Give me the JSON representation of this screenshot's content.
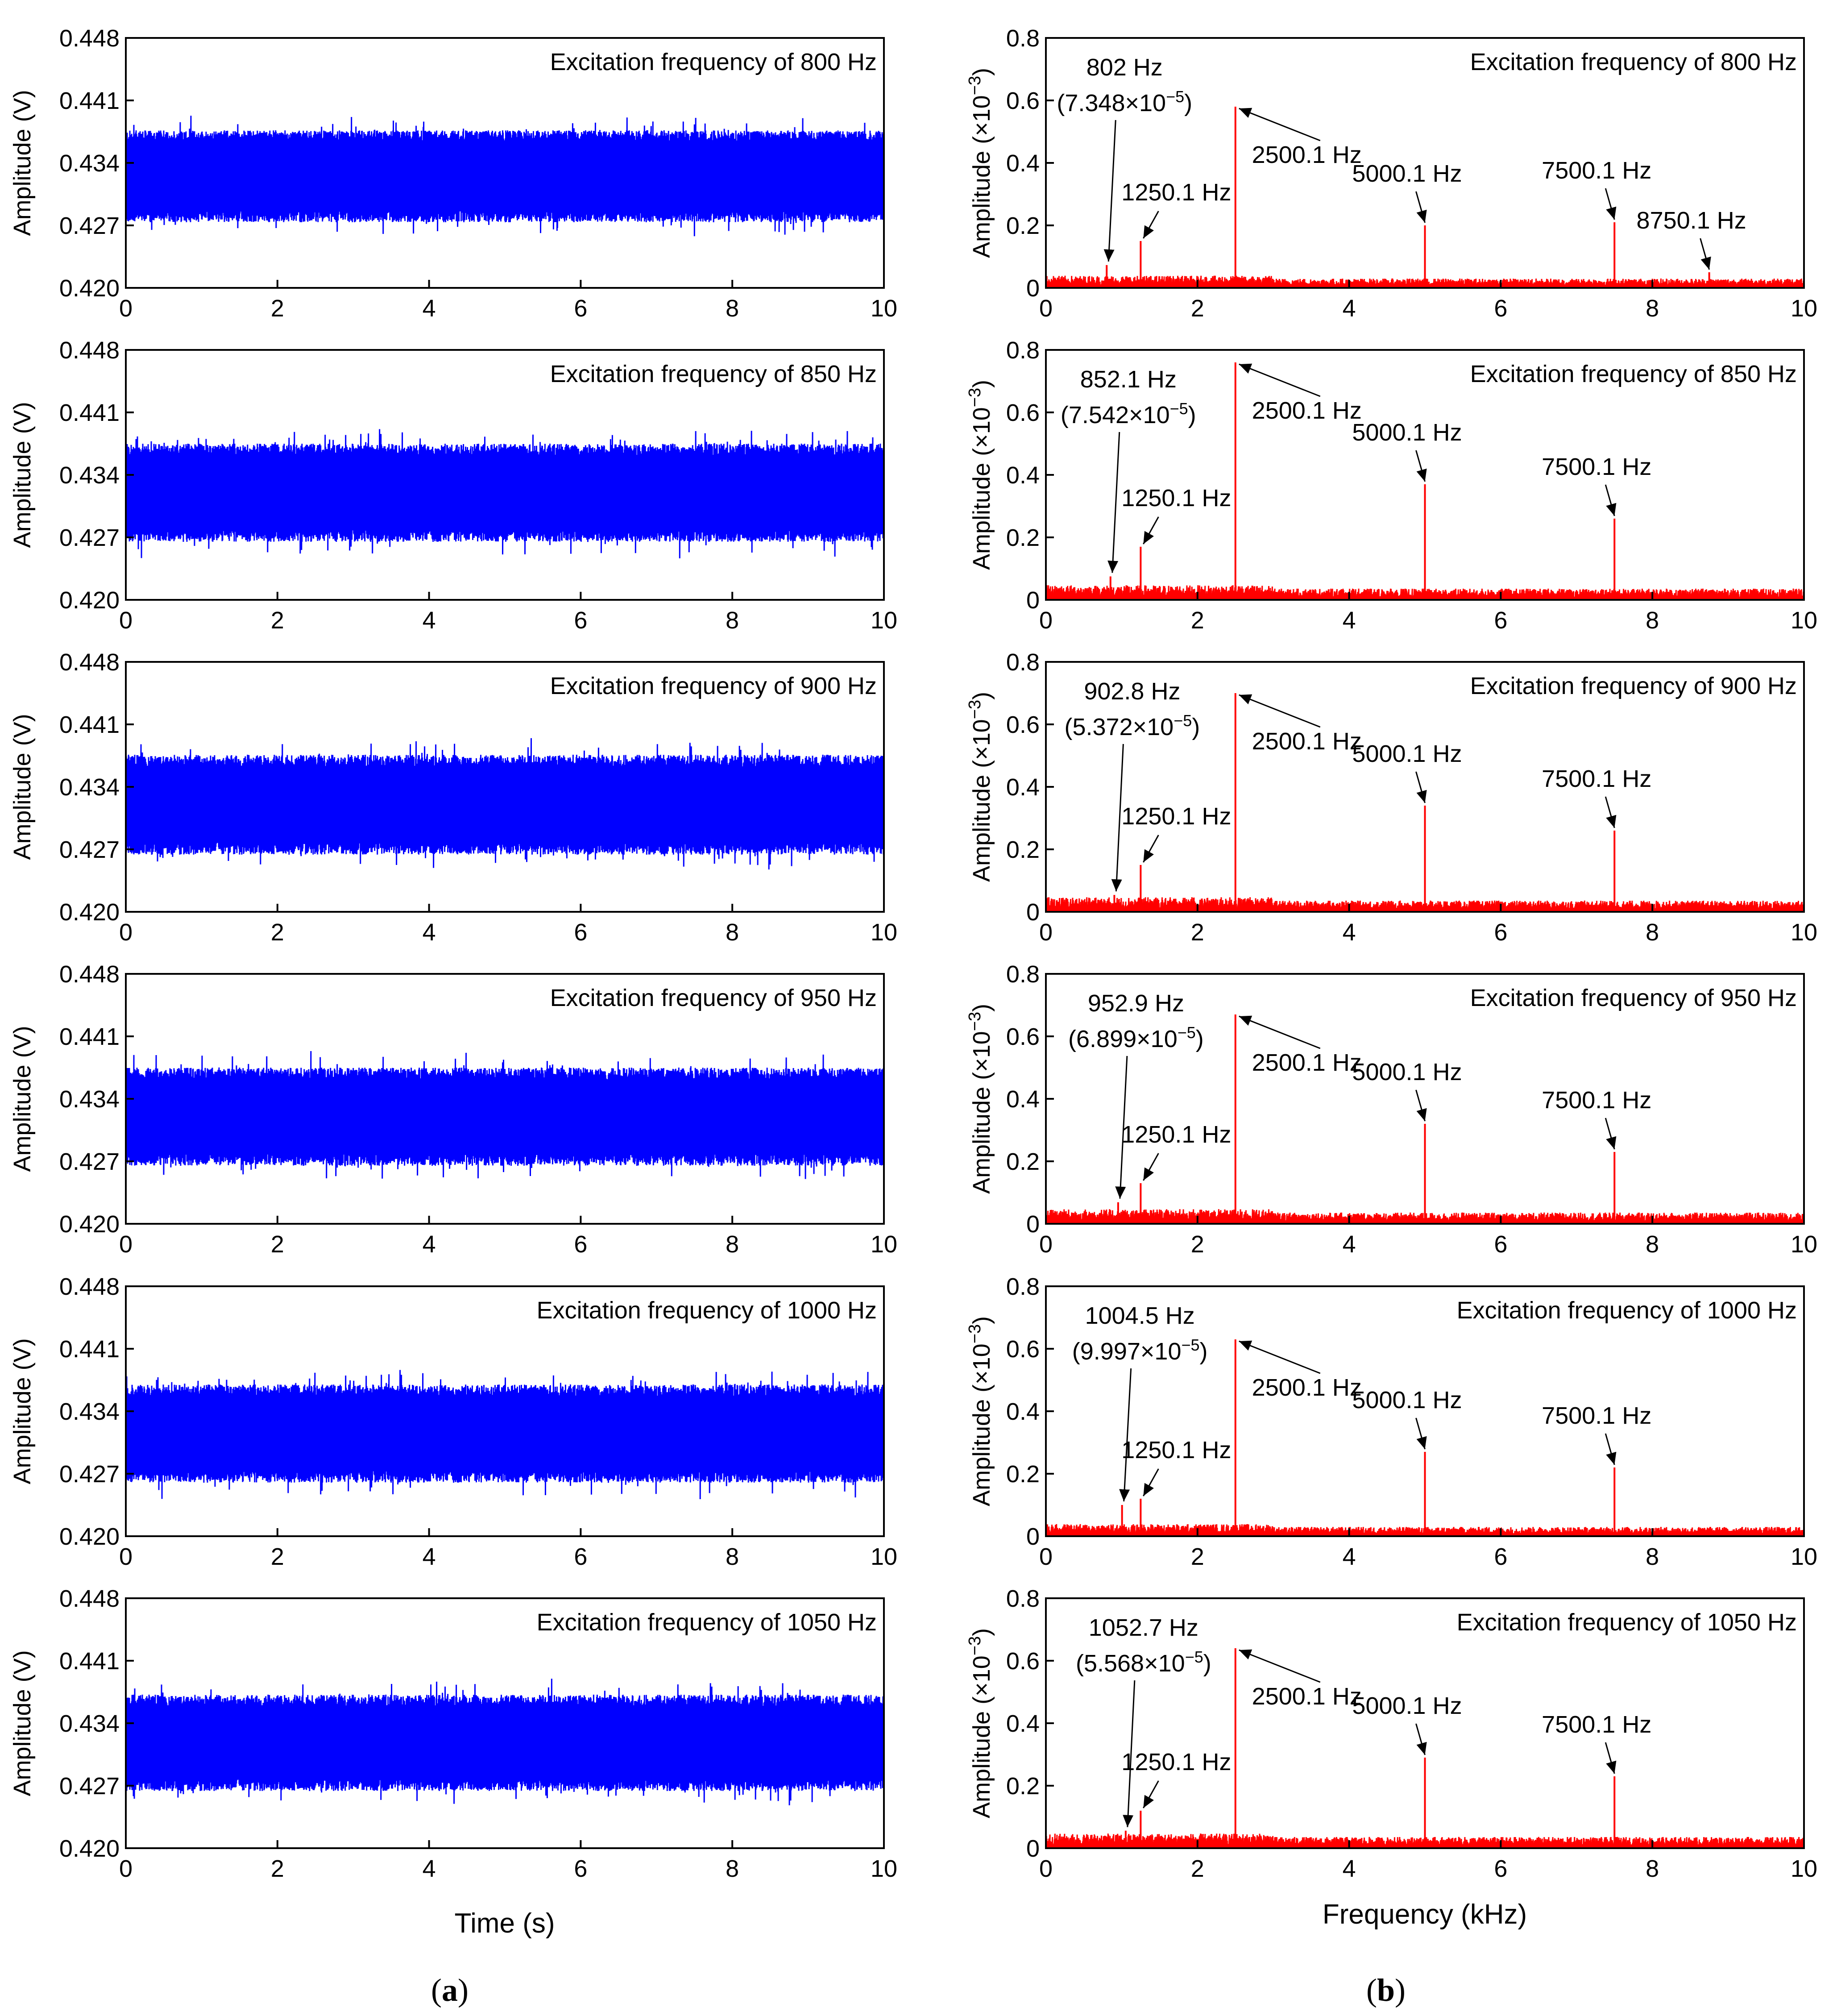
{
  "captions": {
    "a": "a",
    "b": "b"
  },
  "colors": {
    "time_series": "#0000ff",
    "spectrum": "#ff0000",
    "axes": "#000000"
  },
  "left_axis": {
    "ylabel": "Amplitude (V)",
    "xlabel": "Time (s)"
  },
  "right_axis": {
    "ylabel_base": "Amplitude (×10",
    "ylabel_exp": "−3",
    "ylabel_tail": ")",
    "xlabel": "Frequency (kHz)"
  },
  "chart_data": [
    {
      "panel": "a-1",
      "type": "line",
      "title": "Excitation frequency of 800 Hz",
      "xlim": [
        0,
        10
      ],
      "ylim": [
        0.42,
        0.448
      ],
      "xticks": [
        "0",
        "2",
        "4",
        "6",
        "8",
        "10"
      ],
      "yticks": [
        "0.420",
        "0.427",
        "0.434",
        "0.441",
        "0.448"
      ],
      "series": [
        {
          "mean": 0.4325,
          "band_low": 0.4275,
          "band_high": 0.4378
        }
      ]
    },
    {
      "panel": "a-2",
      "type": "line",
      "title": "Excitation frequency of 850 Hz",
      "xlim": [
        0,
        10
      ],
      "ylim": [
        0.42,
        0.448
      ],
      "xticks": [
        "0",
        "2",
        "4",
        "6",
        "8",
        "10"
      ],
      "yticks": [
        "0.420",
        "0.427",
        "0.434",
        "0.441",
        "0.448"
      ],
      "series": [
        {
          "mean": 0.432,
          "band_low": 0.4265,
          "band_high": 0.4375
        }
      ]
    },
    {
      "panel": "a-3",
      "type": "line",
      "title": "Excitation frequency of 900 Hz",
      "xlim": [
        0,
        10
      ],
      "ylim": [
        0.42,
        0.448
      ],
      "xticks": [
        "0",
        "2",
        "4",
        "6",
        "8",
        "10"
      ],
      "yticks": [
        "0.420",
        "0.427",
        "0.434",
        "0.441",
        "0.448"
      ],
      "series": [
        {
          "mean": 0.432,
          "band_low": 0.4265,
          "band_high": 0.4377
        }
      ]
    },
    {
      "panel": "a-4",
      "type": "line",
      "title": "Excitation frequency of 950 Hz",
      "xlim": [
        0,
        10
      ],
      "ylim": [
        0.42,
        0.448
      ],
      "xticks": [
        "0",
        "2",
        "4",
        "6",
        "8",
        "10"
      ],
      "yticks": [
        "0.420",
        "0.427",
        "0.434",
        "0.441",
        "0.448"
      ],
      "series": [
        {
          "mean": 0.432,
          "band_low": 0.4265,
          "band_high": 0.4375
        }
      ]
    },
    {
      "panel": "a-5",
      "type": "line",
      "title": "Excitation frequency of 1000 Hz",
      "xlim": [
        0,
        10
      ],
      "ylim": [
        0.42,
        0.448
      ],
      "xticks": [
        "0",
        "2",
        "4",
        "6",
        "8",
        "10"
      ],
      "yticks": [
        "0.420",
        "0.427",
        "0.434",
        "0.441",
        "0.448"
      ],
      "series": [
        {
          "mean": 0.4315,
          "band_low": 0.426,
          "band_high": 0.437
        }
      ]
    },
    {
      "panel": "a-6",
      "type": "line",
      "title": "Excitation frequency of 1050 Hz",
      "xlim": [
        0,
        10
      ],
      "ylim": [
        0.42,
        0.448
      ],
      "xticks": [
        "0",
        "2",
        "4",
        "6",
        "8",
        "10"
      ],
      "yticks": [
        "0.420",
        "0.427",
        "0.434",
        "0.441",
        "0.448"
      ],
      "series": [
        {
          "mean": 0.4318,
          "band_low": 0.4262,
          "band_high": 0.437
        }
      ]
    },
    {
      "panel": "b-1",
      "type": "line",
      "title": "Excitation frequency of 800 Hz",
      "xlim": [
        0,
        10
      ],
      "ylim": [
        0,
        0.8
      ],
      "xticks": [
        "0",
        "2",
        "4",
        "6",
        "8",
        "10"
      ],
      "yticks": [
        "0",
        "0.2",
        "0.4",
        "0.6",
        "0.8"
      ],
      "noise_floor": 0.025,
      "peaks": [
        {
          "x": 0.802,
          "y": 0.073,
          "label": "802 Hz",
          "sublabel": "(7.348×10",
          "subexp": "−5",
          "subtail": ")"
        },
        {
          "x": 1.2501,
          "y": 0.15,
          "label": "1250.1 Hz"
        },
        {
          "x": 2.5001,
          "y": 0.58,
          "label": "2500.1 Hz"
        },
        {
          "x": 5.0001,
          "y": 0.2,
          "label": "5000.1 Hz"
        },
        {
          "x": 7.5001,
          "y": 0.21,
          "label": "7500.1 Hz"
        },
        {
          "x": 8.7501,
          "y": 0.05,
          "label": "8750.1 Hz"
        }
      ]
    },
    {
      "panel": "b-2",
      "type": "line",
      "title": "Excitation frequency of 850 Hz",
      "xlim": [
        0,
        10
      ],
      "ylim": [
        0,
        0.8
      ],
      "xticks": [
        "0",
        "2",
        "4",
        "6",
        "8",
        "10"
      ],
      "yticks": [
        "0",
        "0.2",
        "0.4",
        "0.6",
        "0.8"
      ],
      "noise_floor": 0.03,
      "peaks": [
        {
          "x": 0.8521,
          "y": 0.075,
          "label": "852.1 Hz",
          "sublabel": "(7.542×10",
          "subexp": "−5",
          "subtail": ")"
        },
        {
          "x": 1.2501,
          "y": 0.17,
          "label": "1250.1 Hz"
        },
        {
          "x": 2.5001,
          "y": 0.76,
          "label": "2500.1 Hz"
        },
        {
          "x": 5.0001,
          "y": 0.37,
          "label": "5000.1 Hz"
        },
        {
          "x": 7.5001,
          "y": 0.26,
          "label": "7500.1 Hz"
        }
      ]
    },
    {
      "panel": "b-3",
      "type": "line",
      "title": "Excitation frequency of 900 Hz",
      "xlim": [
        0,
        10
      ],
      "ylim": [
        0,
        0.8
      ],
      "xticks": [
        "0",
        "2",
        "4",
        "6",
        "8",
        "10"
      ],
      "yticks": [
        "0",
        "0.2",
        "0.4",
        "0.6",
        "0.8"
      ],
      "noise_floor": 0.03,
      "peaks": [
        {
          "x": 0.9028,
          "y": 0.054,
          "label": "902.8 Hz",
          "sublabel": "(5.372×10",
          "subexp": "−5",
          "subtail": ")"
        },
        {
          "x": 1.2501,
          "y": 0.15,
          "label": "1250.1 Hz"
        },
        {
          "x": 2.5001,
          "y": 0.7,
          "label": "2500.1 Hz"
        },
        {
          "x": 5.0001,
          "y": 0.34,
          "label": "5000.1 Hz"
        },
        {
          "x": 7.5001,
          "y": 0.26,
          "label": "7500.1 Hz"
        }
      ]
    },
    {
      "panel": "b-4",
      "type": "line",
      "title": "Excitation frequency of 950 Hz",
      "xlim": [
        0,
        10
      ],
      "ylim": [
        0,
        0.8
      ],
      "xticks": [
        "0",
        "2",
        "4",
        "6",
        "8",
        "10"
      ],
      "yticks": [
        "0",
        "0.2",
        "0.4",
        "0.6",
        "0.8"
      ],
      "noise_floor": 0.03,
      "peaks": [
        {
          "x": 0.9529,
          "y": 0.069,
          "label": "952.9 Hz",
          "sublabel": "(6.899×10",
          "subexp": "−5",
          "subtail": ")"
        },
        {
          "x": 1.2501,
          "y": 0.13,
          "label": "1250.1 Hz"
        },
        {
          "x": 2.5001,
          "y": 0.67,
          "label": "2500.1 Hz"
        },
        {
          "x": 5.0001,
          "y": 0.32,
          "label": "5000.1 Hz"
        },
        {
          "x": 7.5001,
          "y": 0.23,
          "label": "7500.1 Hz"
        }
      ]
    },
    {
      "panel": "b-5",
      "type": "line",
      "title": "Excitation frequency of 1000 Hz",
      "xlim": [
        0,
        10
      ],
      "ylim": [
        0,
        0.8
      ],
      "xticks": [
        "0",
        "2",
        "4",
        "6",
        "8",
        "10"
      ],
      "yticks": [
        "0",
        "0.2",
        "0.4",
        "0.6",
        "0.8"
      ],
      "noise_floor": 0.025,
      "peaks": [
        {
          "x": 1.0045,
          "y": 0.1,
          "label": "1004.5 Hz",
          "sublabel": "(9.997×10",
          "subexp": "−5",
          "subtail": ")"
        },
        {
          "x": 1.2501,
          "y": 0.12,
          "label": "1250.1 Hz"
        },
        {
          "x": 2.5001,
          "y": 0.63,
          "label": "2500.1 Hz"
        },
        {
          "x": 5.0001,
          "y": 0.27,
          "label": "5000.1 Hz"
        },
        {
          "x": 7.5001,
          "y": 0.22,
          "label": "7500.1 Hz"
        }
      ]
    },
    {
      "panel": "b-6",
      "type": "line",
      "title": "Excitation frequency of 1050 Hz",
      "xlim": [
        0,
        10
      ],
      "ylim": [
        0,
        0.8
      ],
      "xticks": [
        "0",
        "2",
        "4",
        "6",
        "8",
        "10"
      ],
      "yticks": [
        "0",
        "0.2",
        "0.4",
        "0.6",
        "0.8"
      ],
      "noise_floor": 0.03,
      "peaks": [
        {
          "x": 1.0527,
          "y": 0.056,
          "label": "1052.7 Hz",
          "sublabel": "(5.568×10",
          "subexp": "−5",
          "subtail": ")"
        },
        {
          "x": 1.2501,
          "y": 0.12,
          "label": "1250.1 Hz"
        },
        {
          "x": 2.5001,
          "y": 0.64,
          "label": "2500.1 Hz"
        },
        {
          "x": 5.0001,
          "y": 0.29,
          "label": "5000.1 Hz"
        },
        {
          "x": 7.5001,
          "y": 0.23,
          "label": "7500.1 Hz"
        }
      ]
    }
  ]
}
